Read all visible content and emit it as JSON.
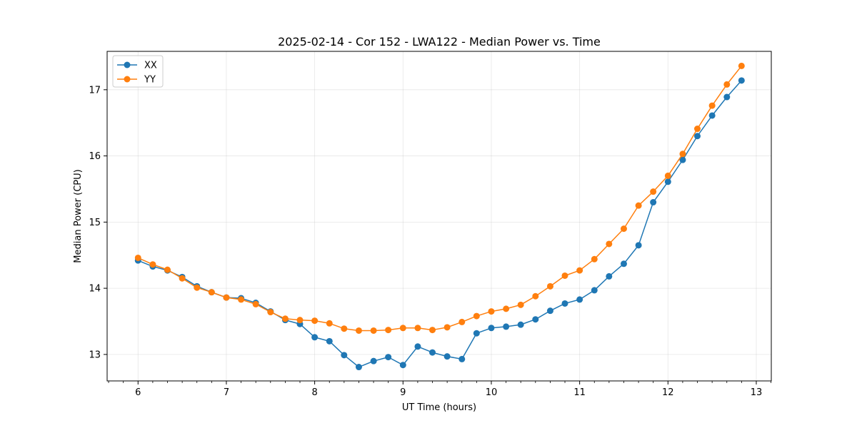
{
  "chart_data": {
    "type": "line",
    "title": "2025-02-14 - Cor 152 - LWA122 - Median Power vs. Time",
    "xlabel": "UT Time (hours)",
    "ylabel": "Median Power (CPU)",
    "xlim": [
      5.65,
      13.17
    ],
    "ylim": [
      12.6,
      17.58
    ],
    "xticks": [
      6,
      7,
      8,
      9,
      10,
      11,
      12,
      13
    ],
    "yticks": [
      13,
      14,
      15,
      16,
      17
    ],
    "xtick_labels": [
      "6",
      "7",
      "8",
      "9",
      "10",
      "11",
      "12",
      "13"
    ],
    "ytick_labels": [
      "13",
      "14",
      "15",
      "16",
      "17"
    ],
    "grid": true,
    "legend_position": "top-left",
    "x": [
      6.0,
      6.167,
      6.333,
      6.5,
      6.667,
      6.833,
      7.0,
      7.167,
      7.333,
      7.5,
      7.667,
      7.833,
      8.0,
      8.167,
      8.333,
      8.5,
      8.667,
      8.833,
      9.0,
      9.167,
      9.333,
      9.5,
      9.667,
      9.833,
      10.0,
      10.167,
      10.333,
      10.5,
      10.667,
      10.833,
      11.0,
      11.167,
      11.333,
      11.5,
      11.667,
      11.833,
      12.0,
      12.167,
      12.333,
      12.5,
      12.667,
      12.833
    ],
    "series": [
      {
        "name": "XX",
        "color": "#1f77b4",
        "values": [
          14.42,
          14.33,
          14.27,
          14.17,
          14.03,
          13.94,
          13.86,
          13.85,
          13.78,
          13.65,
          13.52,
          13.46,
          13.26,
          13.2,
          12.99,
          12.81,
          12.9,
          12.96,
          12.84,
          13.12,
          13.03,
          12.97,
          12.93,
          13.32,
          13.4,
          13.42,
          13.45,
          13.53,
          13.66,
          13.77,
          13.83,
          13.97,
          14.18,
          14.37,
          14.65,
          15.3,
          15.61,
          15.94,
          16.3,
          16.61,
          16.89,
          17.14
        ]
      },
      {
        "name": "YY",
        "color": "#ff7f0e",
        "values": [
          14.46,
          14.36,
          14.28,
          14.15,
          14.01,
          13.94,
          13.86,
          13.83,
          13.76,
          13.64,
          13.54,
          13.52,
          13.51,
          13.47,
          13.39,
          13.36,
          13.36,
          13.37,
          13.4,
          13.4,
          13.37,
          13.41,
          13.49,
          13.58,
          13.65,
          13.69,
          13.75,
          13.88,
          14.03,
          14.19,
          14.27,
          14.44,
          14.67,
          14.9,
          15.25,
          15.46,
          15.7,
          16.03,
          16.41,
          16.76,
          17.08,
          17.36
        ]
      }
    ]
  }
}
